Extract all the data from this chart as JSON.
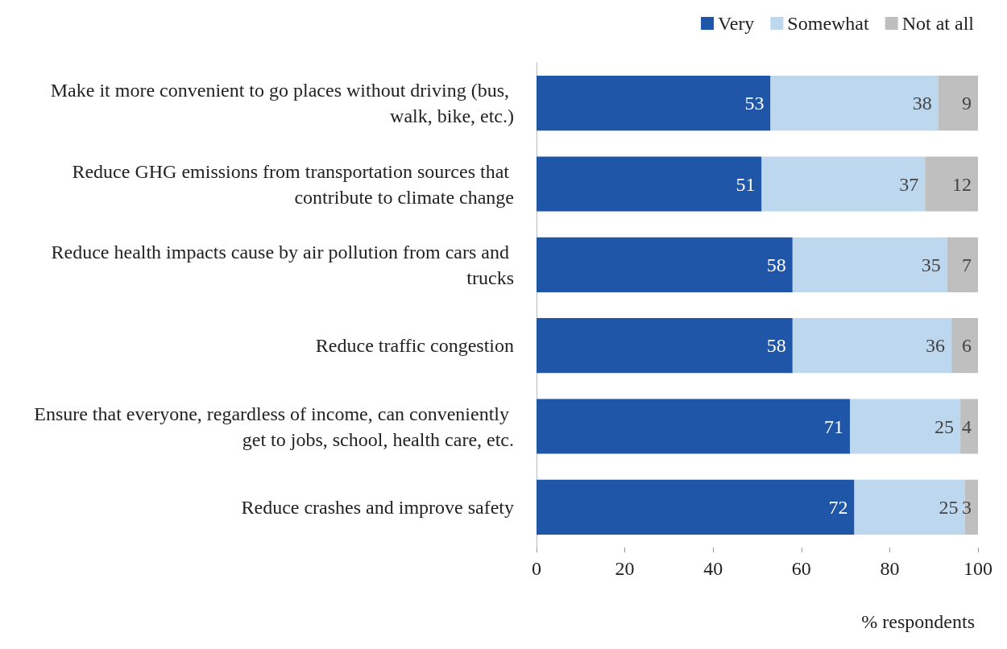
{
  "chart_data": {
    "type": "bar",
    "orientation": "horizontal",
    "stacked": true,
    "categories": [
      "Make it more convenient to go places without driving (bus, walk, bike, etc.)",
      "Reduce GHG emissions from transportation sources that contribute to climate change",
      "Reduce health impacts cause by air pollution from cars and trucks",
      "Reduce traffic congestion",
      "Ensure that everyone, regardless of income, can conveniently get to jobs, school, health care, etc.",
      "Reduce crashes and improve safety"
    ],
    "series": [
      {
        "name": "Very",
        "color": "#1f56a8",
        "values": [
          53,
          51,
          58,
          58,
          71,
          72
        ]
      },
      {
        "name": "Somewhat",
        "color": "#bdd7ee",
        "values": [
          38,
          37,
          35,
          36,
          25,
          25
        ]
      },
      {
        "name": "Not at all",
        "color": "#bfbfbf",
        "values": [
          9,
          12,
          7,
          6,
          4,
          3
        ]
      }
    ],
    "xlim": [
      0,
      100
    ],
    "xticks": [
      0,
      20,
      40,
      60,
      80,
      100
    ],
    "xlabel": "% respondents",
    "data_labels": true,
    "legend": "top right",
    "grid": false
  }
}
